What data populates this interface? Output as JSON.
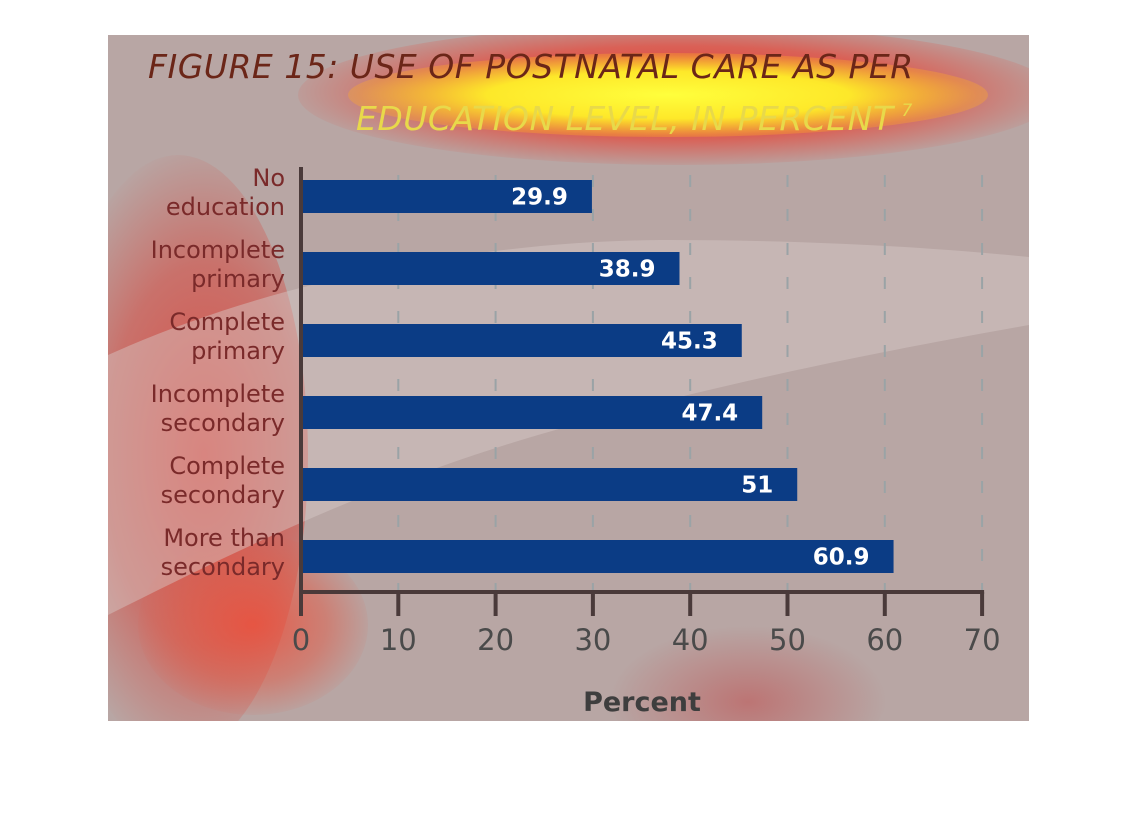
{
  "chart_data": {
    "type": "bar",
    "orientation": "horizontal",
    "title_lines": [
      "FIGURE 15: USE OF POSTNATAL CARE AS PER",
      "EDUCATION LEVEL, IN PERCENT"
    ],
    "title_superscript": "7",
    "categories": [
      [
        "No",
        "education"
      ],
      [
        "Incomplete",
        "primary"
      ],
      [
        "Complete",
        "primary"
      ],
      [
        "Incomplete",
        "secondary"
      ],
      [
        "Complete",
        "secondary"
      ],
      [
        "More than",
        "secondary"
      ]
    ],
    "values": [
      29.9,
      38.9,
      45.3,
      47.4,
      51,
      60.9
    ],
    "value_labels": [
      "29.9",
      "38.9",
      "45.3",
      "47.4",
      "51",
      "60.9"
    ],
    "xlabel": "Percent",
    "xlim": [
      0,
      70
    ],
    "xticks": [
      0,
      10,
      20,
      30,
      40,
      50,
      60,
      70
    ],
    "grid": "vertical dashed",
    "colors": {
      "bar": "#0b3c85",
      "axis": "#4a3a3a",
      "title_dark": "#6b2618",
      "title_light": "#e8d94a",
      "category_text": "#7a2a2a",
      "grid": "#9aa3a6"
    }
  }
}
